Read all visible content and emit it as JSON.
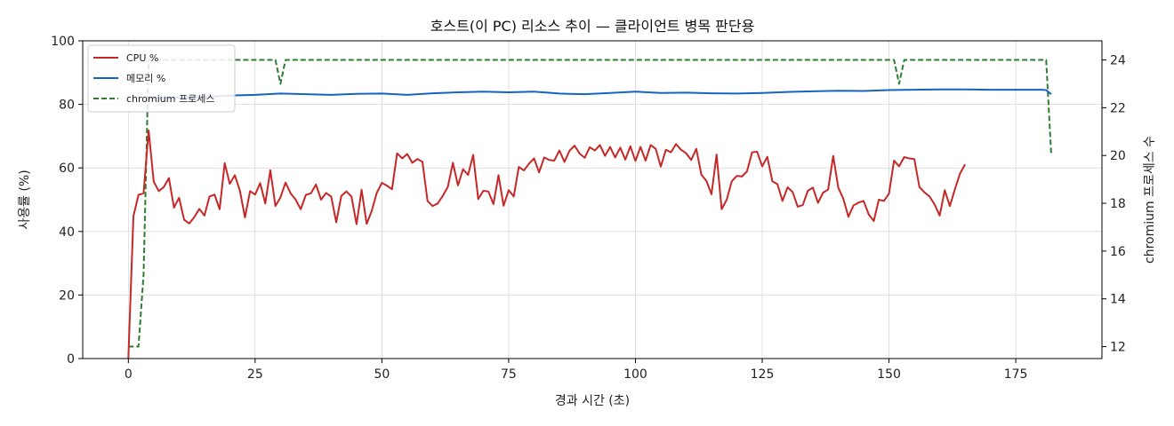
{
  "chart_data": {
    "type": "line",
    "title": "호스트(이 PC) 리소스 추이 — 클라이언트 병목 판단용",
    "xlabel": "경과 시간 (초)",
    "ylabel": "사용률 (%)",
    "y2label": "chromium 프로세스 수",
    "xlim": [
      -9,
      192
    ],
    "ylim": [
      0,
      100
    ],
    "y2lim": [
      11.5,
      24.8
    ],
    "x_ticks": [
      0,
      25,
      50,
      75,
      100,
      125,
      150,
      175
    ],
    "y_ticks": [
      0,
      20,
      40,
      60,
      80,
      100
    ],
    "y2_ticks": [
      12,
      14,
      16,
      18,
      20,
      22,
      24
    ],
    "grid": true,
    "legend_position": "top-left",
    "series": [
      {
        "name": "CPU %",
        "axis": "left",
        "color": "#c62828",
        "style": "solid",
        "points": [
          [
            0,
            0
          ],
          [
            1,
            44.8
          ],
          [
            2,
            51.5
          ],
          [
            3,
            52.0
          ],
          [
            4,
            71.8
          ],
          [
            5,
            55.7
          ],
          [
            6,
            52.7
          ],
          [
            7,
            54.0
          ],
          [
            8,
            56.8
          ],
          [
            9,
            47.5
          ],
          [
            10,
            50.6
          ],
          [
            11,
            43.7
          ],
          [
            12,
            42.5
          ],
          [
            13,
            44.5
          ],
          [
            14,
            47.1
          ],
          [
            15,
            45.0
          ],
          [
            16,
            51.0
          ],
          [
            17,
            51.6
          ],
          [
            18,
            47.0
          ],
          [
            19,
            61.5
          ],
          [
            20,
            55.0
          ],
          [
            21,
            57.7
          ],
          [
            22,
            52.8
          ],
          [
            23,
            44.4
          ],
          [
            24,
            52.7
          ],
          [
            25,
            51.6
          ],
          [
            26,
            55.2
          ],
          [
            27,
            48.8
          ],
          [
            28,
            59.3
          ],
          [
            29,
            48.0
          ],
          [
            30,
            50.7
          ],
          [
            31,
            55.4
          ],
          [
            32,
            52.0
          ],
          [
            33,
            50.0
          ],
          [
            34,
            47.0
          ],
          [
            35,
            51.5
          ],
          [
            36,
            52.0
          ],
          [
            37,
            54.8
          ],
          [
            38,
            50.0
          ],
          [
            39,
            52.1
          ],
          [
            40,
            51.0
          ],
          [
            41,
            42.9
          ],
          [
            42,
            51.2
          ],
          [
            43,
            52.6
          ],
          [
            44,
            51.0
          ],
          [
            45,
            42.3
          ],
          [
            46,
            53.1
          ],
          [
            47,
            42.4
          ],
          [
            48,
            46.5
          ],
          [
            49,
            52.2
          ],
          [
            50,
            55.3
          ],
          [
            51,
            54.4
          ],
          [
            52,
            53.3
          ],
          [
            53,
            64.6
          ],
          [
            54,
            63.0
          ],
          [
            55,
            64.4
          ],
          [
            56,
            61.6
          ],
          [
            57,
            62.8
          ],
          [
            58,
            61.9
          ],
          [
            59,
            49.6
          ],
          [
            60,
            48.0
          ],
          [
            61,
            48.8
          ],
          [
            62,
            51.2
          ],
          [
            63,
            54.0
          ],
          [
            64,
            61.6
          ],
          [
            65,
            54.5
          ],
          [
            66,
            59.6
          ],
          [
            67,
            57.8
          ],
          [
            68,
            64.1
          ],
          [
            69,
            50.2
          ],
          [
            70,
            52.8
          ],
          [
            71,
            52.6
          ],
          [
            72,
            48.6
          ],
          [
            73,
            57.7
          ],
          [
            74,
            48.1
          ],
          [
            75,
            53.0
          ],
          [
            76,
            51.0
          ],
          [
            77,
            60.3
          ],
          [
            78,
            59.2
          ],
          [
            79,
            61.3
          ],
          [
            80,
            63.0
          ],
          [
            81,
            58.6
          ],
          [
            82,
            63.3
          ],
          [
            83,
            62.5
          ],
          [
            84,
            62.3
          ],
          [
            85,
            65.5
          ],
          [
            86,
            61.9
          ],
          [
            87,
            65.4
          ],
          [
            88,
            67.0
          ],
          [
            89,
            64.5
          ],
          [
            90,
            63.2
          ],
          [
            91,
            66.5
          ],
          [
            92,
            65.5
          ],
          [
            93,
            67.2
          ],
          [
            94,
            63.8
          ],
          [
            95,
            66.6
          ],
          [
            96,
            63.3
          ],
          [
            97,
            66.4
          ],
          [
            98,
            62.6
          ],
          [
            99,
            66.8
          ],
          [
            100,
            62.2
          ],
          [
            101,
            66.6
          ],
          [
            102,
            62.3
          ],
          [
            103,
            67.2
          ],
          [
            104,
            66.0
          ],
          [
            105,
            60.4
          ],
          [
            106,
            65.7
          ],
          [
            107,
            64.9
          ],
          [
            108,
            67.5
          ],
          [
            109,
            65.7
          ],
          [
            110,
            64.6
          ],
          [
            111,
            62.5
          ],
          [
            112,
            66.0
          ],
          [
            113,
            57.9
          ],
          [
            114,
            55.9
          ],
          [
            115,
            51.7
          ],
          [
            116,
            64.2
          ],
          [
            117,
            47.0
          ],
          [
            118,
            50.0
          ],
          [
            119,
            55.8
          ],
          [
            120,
            57.5
          ],
          [
            121,
            57.3
          ],
          [
            122,
            58.9
          ],
          [
            123,
            64.9
          ],
          [
            124,
            65.1
          ],
          [
            125,
            60.5
          ],
          [
            126,
            63.5
          ],
          [
            127,
            55.8
          ],
          [
            128,
            54.9
          ],
          [
            129,
            49.6
          ],
          [
            130,
            53.9
          ],
          [
            131,
            52.4
          ],
          [
            132,
            47.8
          ],
          [
            133,
            48.3
          ],
          [
            134,
            52.8
          ],
          [
            135,
            53.8
          ],
          [
            136,
            49.0
          ],
          [
            137,
            52.2
          ],
          [
            138,
            53.2
          ],
          [
            139,
            63.8
          ],
          [
            140,
            53.8
          ],
          [
            141,
            50.3
          ],
          [
            142,
            44.6
          ],
          [
            143,
            48.2
          ],
          [
            144,
            49.1
          ],
          [
            145,
            49.6
          ],
          [
            146,
            45.4
          ],
          [
            147,
            43.3
          ],
          [
            148,
            50.0
          ],
          [
            149,
            49.6
          ],
          [
            150,
            51.9
          ],
          [
            151,
            62.3
          ],
          [
            152,
            60.5
          ],
          [
            153,
            63.4
          ],
          [
            154,
            63.0
          ],
          [
            155,
            62.8
          ],
          [
            156,
            54.0
          ],
          [
            157,
            52.3
          ],
          [
            158,
            51.0
          ],
          [
            159,
            48.5
          ],
          [
            160,
            45.0
          ],
          [
            161,
            53.0
          ],
          [
            162,
            48.0
          ],
          [
            163,
            53.3
          ],
          [
            164,
            58.2
          ],
          [
            165,
            61.1
          ]
        ]
      },
      {
        "name": "메모리 %",
        "axis": "left",
        "color": "#1565c0",
        "style": "solid",
        "points": [
          [
            4,
            82.0
          ],
          [
            10,
            82.1
          ],
          [
            15,
            82.3
          ],
          [
            20,
            82.8
          ],
          [
            25,
            83.0
          ],
          [
            30,
            83.4
          ],
          [
            35,
            83.2
          ],
          [
            40,
            83.0
          ],
          [
            45,
            83.3
          ],
          [
            50,
            83.4
          ],
          [
            55,
            83.0
          ],
          [
            60,
            83.5
          ],
          [
            65,
            83.8
          ],
          [
            70,
            84.0
          ],
          [
            75,
            83.8
          ],
          [
            80,
            84.0
          ],
          [
            85,
            83.4
          ],
          [
            90,
            83.2
          ],
          [
            95,
            83.6
          ],
          [
            100,
            84.0
          ],
          [
            105,
            83.6
          ],
          [
            110,
            83.7
          ],
          [
            115,
            83.5
          ],
          [
            120,
            83.4
          ],
          [
            125,
            83.6
          ],
          [
            130,
            83.9
          ],
          [
            135,
            84.1
          ],
          [
            140,
            84.3
          ],
          [
            145,
            84.2
          ],
          [
            150,
            84.5
          ],
          [
            155,
            84.6
          ],
          [
            160,
            84.7
          ],
          [
            165,
            84.7
          ],
          [
            170,
            84.6
          ],
          [
            175,
            84.6
          ],
          [
            180,
            84.6
          ],
          [
            181,
            84.5
          ],
          [
            182,
            83.2
          ]
        ]
      },
      {
        "name": "chromium 프로세스",
        "axis": "right",
        "color": "#2e7d32",
        "style": "dashed",
        "points": [
          [
            0,
            12
          ],
          [
            1,
            12
          ],
          [
            2,
            12
          ],
          [
            3,
            15
          ],
          [
            4,
            24
          ],
          [
            5,
            24
          ],
          [
            10,
            24
          ],
          [
            20,
            24
          ],
          [
            29,
            24
          ],
          [
            30,
            23
          ],
          [
            31,
            24
          ],
          [
            40,
            24
          ],
          [
            60,
            24
          ],
          [
            80,
            24
          ],
          [
            100,
            24
          ],
          [
            120,
            24
          ],
          [
            140,
            24
          ],
          [
            151,
            24
          ],
          [
            152,
            23
          ],
          [
            153,
            24
          ],
          [
            160,
            24
          ],
          [
            170,
            24
          ],
          [
            181,
            24
          ],
          [
            182,
            20
          ]
        ]
      }
    ]
  }
}
